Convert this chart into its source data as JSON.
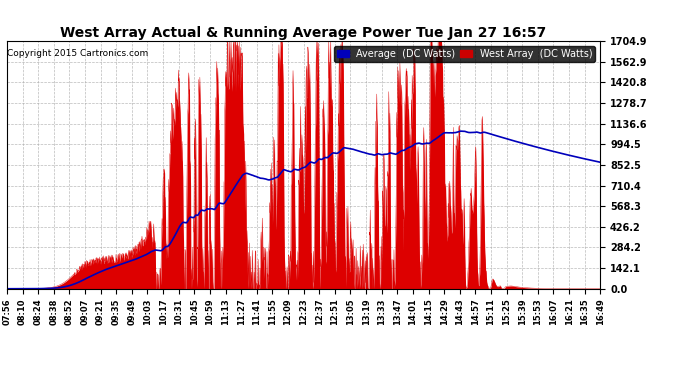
{
  "title": "West Array Actual & Running Average Power Tue Jan 27 16:57",
  "copyright": "Copyright 2015 Cartronics.com",
  "background_color": "#ffffff",
  "plot_bg_color": "#ffffff",
  "grid_color": "#aaaaaa",
  "yticks": [
    0.0,
    142.1,
    284.2,
    426.2,
    568.3,
    710.4,
    852.5,
    994.5,
    1136.6,
    1278.7,
    1420.8,
    1562.9,
    1704.9
  ],
  "ymax": 1704.9,
  "legend_labels": [
    "Average  (DC Watts)",
    "West Array  (DC Watts)"
  ],
  "legend_colors": [
    "#0000bb",
    "#cc0000"
  ],
  "xtick_labels": [
    "07:56",
    "08:10",
    "08:24",
    "08:38",
    "08:52",
    "09:07",
    "09:21",
    "09:35",
    "09:49",
    "10:03",
    "10:17",
    "10:31",
    "10:45",
    "10:59",
    "11:13",
    "11:27",
    "11:41",
    "11:55",
    "12:09",
    "12:23",
    "12:37",
    "12:51",
    "13:05",
    "13:19",
    "13:33",
    "13:47",
    "14:01",
    "14:15",
    "14:29",
    "14:43",
    "14:57",
    "15:11",
    "15:25",
    "15:39",
    "15:53",
    "16:07",
    "16:21",
    "16:35",
    "16:49"
  ],
  "fig_width": 6.9,
  "fig_height": 3.75,
  "dpi": 100
}
